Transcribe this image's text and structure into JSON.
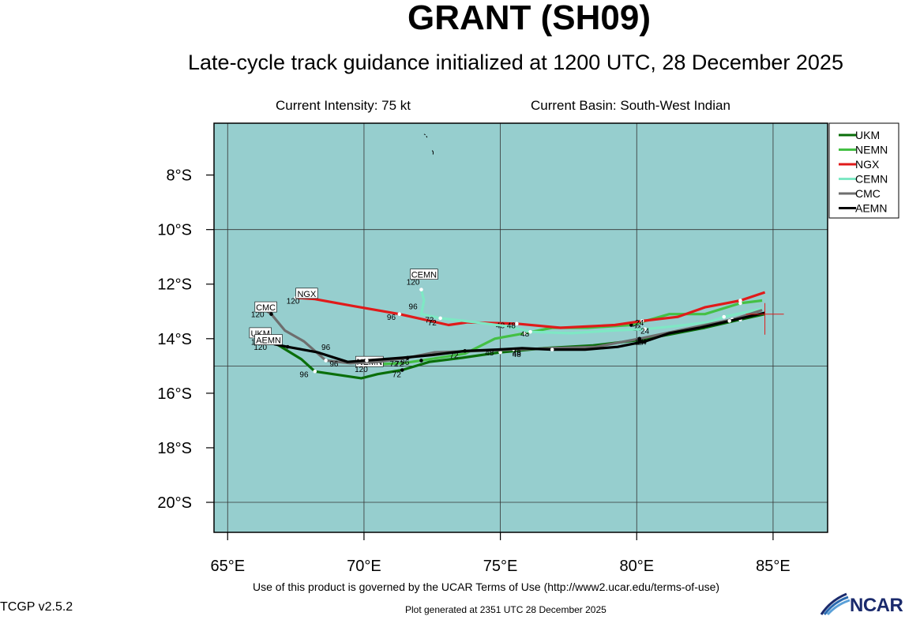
{
  "header": {
    "title": "GRANT (SH09)",
    "subtitle": "Late-cycle track guidance initialized at 1200 UTC, 28 December 2025",
    "intensity": "Current Intensity: 75 kt",
    "basin": "Current Basin: South-West Indian"
  },
  "footer": {
    "terms": "Use of this product is governed by the UCAR Terms of Use (http://www2.ucar.edu/terms-of-use)",
    "version": "TCGP v2.5.2",
    "generated": "Plot generated at 2351 UTC   28 December 2025",
    "logo_text": "NCAR"
  },
  "colors": {
    "ocean": "#96cece",
    "UKM": "#0a6e0a",
    "NEMN": "#44c044",
    "NGX": "#e01a1a",
    "CEMN": "#7ee8c4",
    "CMC": "#6e6e6e",
    "AEMN": "#000000"
  },
  "chart_data": {
    "type": "line",
    "xlabel": "",
    "ylabel": "",
    "xlim": [
      64.5,
      87
    ],
    "ylim": [
      -21.1,
      -6.1
    ],
    "x_ticks": [
      65,
      70,
      75,
      80,
      85
    ],
    "x_tick_labels": [
      "65°E",
      "70°E",
      "75°E",
      "80°E",
      "85°E"
    ],
    "y_ticks": [
      -8,
      -10,
      -12,
      -14,
      -16,
      -18,
      -20
    ],
    "y_tick_labels": [
      "8°S",
      "10°S",
      "12°S",
      "14°S",
      "16°S",
      "18°S",
      "20°S"
    ],
    "grid": true,
    "legend": "top-right, outside plot",
    "current_position": [
      84.7,
      -13.1
    ],
    "series": [
      {
        "name": "UKM",
        "points": [
          [
            84.7,
            -13.1
          ],
          [
            83.8,
            -13.3
          ],
          [
            82.5,
            -13.6
          ],
          [
            81.2,
            -13.85
          ],
          [
            80.1,
            -14.05
          ],
          [
            78.4,
            -14.25
          ],
          [
            76.6,
            -14.35
          ],
          [
            75.0,
            -14.5
          ],
          [
            73.6,
            -14.7
          ],
          [
            72.4,
            -14.85
          ],
          [
            71.4,
            -15.15
          ],
          [
            70.5,
            -15.3
          ],
          [
            69.9,
            -15.45
          ],
          [
            68.2,
            -15.2
          ],
          [
            67.7,
            -14.75
          ],
          [
            66.8,
            -14.2
          ]
        ],
        "labels": [
          {
            "text": "24",
            "at": [
              80.1,
              -14.05
            ]
          },
          {
            "text": "48",
            "at": [
              75.6,
              -14.55
            ]
          },
          {
            "text": "72",
            "at": [
              71.2,
              -15.3
            ]
          },
          {
            "text": "96",
            "at": [
              67.8,
              -15.3
            ]
          },
          {
            "text": "120",
            "at": [
              66.1,
              -14.1
            ]
          }
        ],
        "end_label": "UKM",
        "end_label_at": [
          66.2,
          -13.8
        ]
      },
      {
        "name": "NEMN",
        "points": [
          [
            84.6,
            -12.6
          ],
          [
            83.8,
            -12.7
          ],
          [
            82.5,
            -13.1
          ],
          [
            81.2,
            -13.1
          ],
          [
            79.8,
            -13.5
          ],
          [
            78.2,
            -13.6
          ],
          [
            76.9,
            -13.6
          ],
          [
            75.9,
            -13.8
          ],
          [
            74.8,
            -14.0
          ],
          [
            73.7,
            -14.55
          ],
          [
            72.1,
            -14.8
          ],
          [
            71.4,
            -14.9
          ],
          [
            70.2,
            -14.95
          ],
          [
            70.0,
            -15.0
          ]
        ],
        "labels": [
          {
            "text": "24",
            "at": [
              80.0,
              -13.6
            ]
          },
          {
            "text": "48",
            "at": [
              75.9,
              -13.8
            ]
          },
          {
            "text": "72",
            "at": [
              71.3,
              -14.9
            ]
          },
          {
            "text": "96",
            "at": [
              71.5,
              -14.85
            ]
          },
          {
            "text": "120",
            "at": [
              69.9,
              -15.1
            ]
          }
        ],
        "end_label": "NEMN",
        "end_label_at": [
          70.2,
          -14.85
        ]
      },
      {
        "name": "NGX",
        "points": [
          [
            84.7,
            -12.3
          ],
          [
            83.8,
            -12.6
          ],
          [
            82.5,
            -12.85
          ],
          [
            81.5,
            -13.2
          ],
          [
            80.2,
            -13.35
          ],
          [
            79.2,
            -13.5
          ],
          [
            77.2,
            -13.6
          ],
          [
            75.6,
            -13.45
          ],
          [
            73.8,
            -13.4
          ],
          [
            73.1,
            -13.5
          ],
          [
            71.3,
            -13.1
          ],
          [
            69.6,
            -12.8
          ],
          [
            68.2,
            -12.55
          ],
          [
            67.5,
            -12.5
          ]
        ],
        "labels": [
          {
            "text": "24",
            "at": [
              80.1,
              -13.4
            ]
          },
          {
            "text": "48",
            "at": [
              75.0,
              -13.5
            ]
          },
          {
            "text": "72",
            "at": [
              72.5,
              -13.4
            ]
          },
          {
            "text": "96",
            "at": [
              71.0,
              -13.2
            ]
          },
          {
            "text": "120",
            "at": [
              67.4,
              -12.6
            ]
          }
        ],
        "end_label": "NGX",
        "end_label_at": [
          67.9,
          -12.35
        ]
      },
      {
        "name": "CEMN",
        "points": [
          [
            84.6,
            -12.9
          ],
          [
            83.2,
            -13.2
          ],
          [
            82.6,
            -13.4
          ],
          [
            81.3,
            -13.55
          ],
          [
            80.3,
            -13.65
          ],
          [
            79.1,
            -13.7
          ],
          [
            77.6,
            -13.8
          ],
          [
            76.1,
            -13.75
          ],
          [
            75.3,
            -13.55
          ],
          [
            73.7,
            -13.35
          ],
          [
            72.8,
            -13.25
          ],
          [
            72.1,
            -13.1
          ],
          [
            72.2,
            -12.6
          ],
          [
            72.1,
            -12.2
          ]
        ],
        "labels": [
          {
            "text": "24",
            "at": [
              80.3,
              -13.7
            ]
          },
          {
            "text": "48",
            "at": [
              75.4,
              -13.5
            ]
          },
          {
            "text": "72",
            "at": [
              72.4,
              -13.3
            ]
          },
          {
            "text": "96",
            "at": [
              71.8,
              -12.8
            ]
          },
          {
            "text": "120",
            "at": [
              71.8,
              -11.9
            ]
          }
        ],
        "end_label": "CEMN",
        "end_label_at": [
          72.2,
          -11.65
        ]
      },
      {
        "name": "CMC",
        "points": [
          [
            84.6,
            -12.95
          ],
          [
            83.5,
            -13.3
          ],
          [
            82.5,
            -13.5
          ],
          [
            81.3,
            -13.75
          ],
          [
            80.1,
            -14.0
          ],
          [
            78.5,
            -14.3
          ],
          [
            76.9,
            -14.35
          ],
          [
            75.5,
            -14.4
          ],
          [
            74.1,
            -14.45
          ],
          [
            72.6,
            -14.5
          ],
          [
            71.6,
            -14.7
          ],
          [
            70.5,
            -14.85
          ],
          [
            69.5,
            -14.9
          ],
          [
            68.6,
            -14.8
          ],
          [
            67.8,
            -14.1
          ],
          [
            67.1,
            -13.7
          ],
          [
            66.6,
            -13.1
          ],
          [
            66.3,
            -12.9
          ]
        ],
        "labels": [
          {
            "text": "24",
            "at": [
              80.1,
              -14.1
            ]
          },
          {
            "text": "48",
            "at": [
              75.6,
              -14.5
            ]
          },
          {
            "text": "72",
            "at": [
              73.3,
              -14.6
            ]
          },
          {
            "text": "96",
            "at": [
              68.6,
              -14.3
            ]
          },
          {
            "text": "120",
            "at": [
              66.1,
              -13.1
            ]
          }
        ],
        "end_label": "CMC",
        "end_label_at": [
          66.4,
          -12.85
        ]
      },
      {
        "name": "AEMN",
        "points": [
          [
            84.7,
            -13.05
          ],
          [
            83.4,
            -13.35
          ],
          [
            82.3,
            -13.6
          ],
          [
            81.2,
            -13.8
          ],
          [
            80.3,
            -14.1
          ],
          [
            79.3,
            -14.3
          ],
          [
            78.1,
            -14.4
          ],
          [
            76.9,
            -14.4
          ],
          [
            75.8,
            -14.35
          ],
          [
            74.9,
            -14.4
          ],
          [
            73.7,
            -14.45
          ],
          [
            72.5,
            -14.6
          ],
          [
            71.4,
            -14.7
          ],
          [
            70.1,
            -14.8
          ],
          [
            69.4,
            -14.85
          ],
          [
            68.3,
            -14.5
          ],
          [
            67.2,
            -14.3
          ],
          [
            66.7,
            -14.2
          ]
        ],
        "labels": [
          {
            "text": "24",
            "at": [
              80.2,
              -14.1
            ]
          },
          {
            "text": "48",
            "at": [
              74.6,
              -14.5
            ]
          },
          {
            "text": "72",
            "at": [
              71.1,
              -14.9
            ]
          },
          {
            "text": "96",
            "at": [
              68.9,
              -14.9
            ]
          },
          {
            "text": "120",
            "at": [
              66.2,
              -14.3
            ]
          }
        ],
        "end_label": "AEMN",
        "end_label_at": [
          66.5,
          -14.05
        ]
      }
    ]
  }
}
